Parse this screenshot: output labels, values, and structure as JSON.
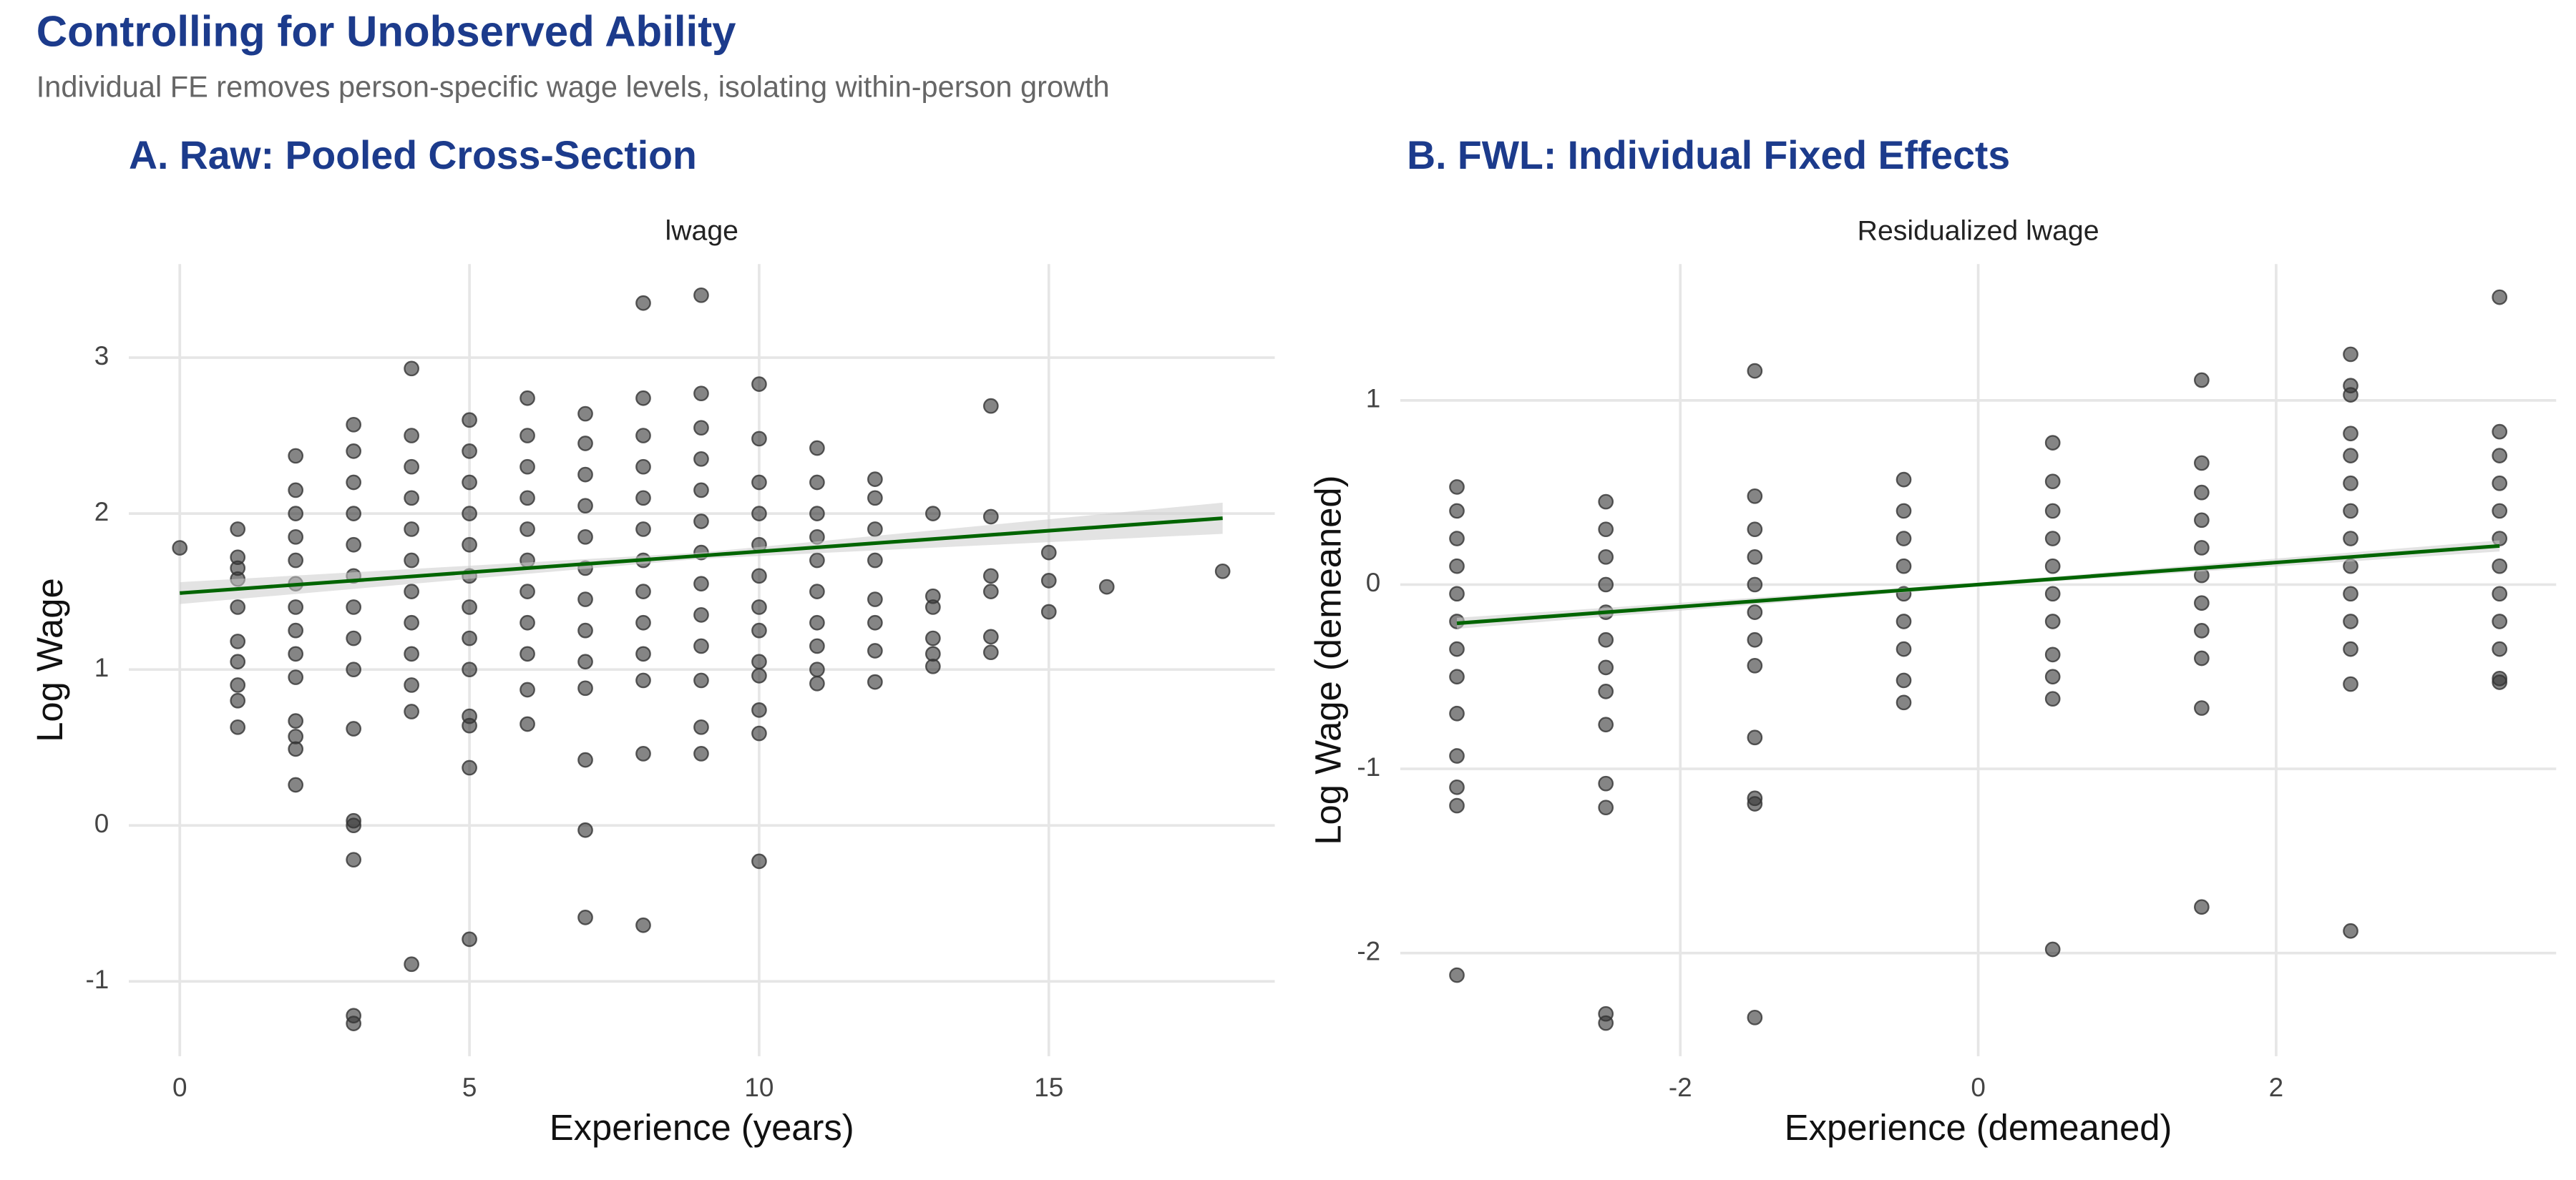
{
  "title": "Controlling for Unobserved Ability",
  "subtitle": "Individual FE removes person-specific wage levels, isolating within-person growth",
  "chart_data": [
    {
      "type": "strip-scatter",
      "title": "A. Raw: Pooled Cross-Section",
      "strip": "lwage",
      "x_label": "Experience (years)",
      "y_label": "Log Wage",
      "xlim": [
        -0.88,
        18.9
      ],
      "ylim": [
        -1.48,
        3.6
      ],
      "xticks": [
        0,
        5,
        10,
        15
      ],
      "yticks": [
        -1,
        0,
        1,
        2,
        3
      ],
      "grid": true,
      "point_color": "#333333",
      "groups": [
        {
          "x": 0,
          "values": [
            1.78
          ]
        },
        {
          "x": 1,
          "values": [
            1.9,
            1.72,
            1.65,
            1.58,
            1.4,
            1.18,
            1.05,
            0.9,
            0.8,
            0.63
          ]
        },
        {
          "x": 2,
          "values": [
            2.37,
            2.15,
            2.0,
            1.85,
            1.7,
            1.55,
            1.4,
            1.25,
            1.1,
            0.95,
            0.67,
            0.57,
            0.49,
            0.26
          ]
        },
        {
          "x": 3,
          "values": [
            2.57,
            2.4,
            2.2,
            2.0,
            1.8,
            1.6,
            1.4,
            1.2,
            1.0,
            0.62,
            0.03,
            0.0,
            -0.22,
            -1.22,
            -1.27
          ]
        },
        {
          "x": 4,
          "values": [
            2.93,
            2.5,
            2.3,
            2.1,
            1.9,
            1.7,
            1.5,
            1.3,
            1.1,
            0.9,
            0.73,
            -0.89
          ]
        },
        {
          "x": 5,
          "values": [
            2.6,
            2.4,
            2.2,
            2.0,
            1.8,
            1.6,
            1.4,
            1.2,
            1.0,
            0.7,
            0.64,
            0.37,
            -0.73
          ]
        },
        {
          "x": 6,
          "values": [
            2.74,
            2.5,
            2.3,
            2.1,
            1.9,
            1.7,
            1.5,
            1.3,
            1.1,
            0.87,
            0.65
          ]
        },
        {
          "x": 7,
          "values": [
            2.64,
            2.45,
            2.25,
            2.05,
            1.85,
            1.65,
            1.45,
            1.25,
            1.05,
            0.88,
            0.42,
            -0.03,
            -0.59
          ]
        },
        {
          "x": 8,
          "values": [
            3.35,
            2.74,
            2.5,
            2.3,
            2.1,
            1.9,
            1.7,
            1.5,
            1.3,
            1.1,
            0.93,
            0.46,
            -0.64
          ]
        },
        {
          "x": 9,
          "values": [
            3.4,
            2.77,
            2.55,
            2.35,
            2.15,
            1.95,
            1.75,
            1.55,
            1.35,
            1.15,
            0.93,
            0.63,
            0.46
          ]
        },
        {
          "x": 10,
          "values": [
            2.83,
            2.48,
            2.2,
            2.0,
            1.8,
            1.6,
            1.4,
            1.25,
            1.05,
            0.96,
            0.74,
            0.59,
            -0.23
          ]
        },
        {
          "x": 11,
          "values": [
            2.42,
            2.2,
            2.0,
            1.85,
            1.7,
            1.5,
            1.3,
            1.15,
            1.0,
            0.91
          ]
        },
        {
          "x": 12,
          "values": [
            2.22,
            2.1,
            1.9,
            1.7,
            1.45,
            1.3,
            1.12,
            0.92
          ]
        },
        {
          "x": 13,
          "values": [
            2.0,
            1.47,
            1.4,
            1.2,
            1.1,
            1.02
          ]
        },
        {
          "x": 14,
          "values": [
            2.69,
            1.98,
            1.6,
            1.5,
            1.21,
            1.11
          ]
        },
        {
          "x": 15,
          "values": [
            1.75,
            1.57,
            1.37
          ]
        },
        {
          "x": 16,
          "values": [
            1.53
          ]
        },
        {
          "x": 18,
          "values": [
            1.63
          ]
        }
      ],
      "fit": {
        "color": "#006400",
        "band_color": "#cccccc",
        "x": [
          0,
          9,
          18
        ],
        "y": [
          1.49,
          1.73,
          1.97
        ],
        "lower": [
          1.42,
          1.71,
          1.87
        ],
        "upper": [
          1.56,
          1.75,
          2.07
        ]
      }
    },
    {
      "type": "strip-scatter",
      "title": "B. FWL: Individual Fixed Effects",
      "strip": "Residualized lwage",
      "x_label": "Experience (demeaned)",
      "y_label": "Log Wage (demeaned)",
      "xlim": [
        -3.88,
        3.88
      ],
      "ylim": [
        -2.56,
        1.74
      ],
      "xticks": [
        -2,
        0,
        2
      ],
      "yticks": [
        -2,
        -1,
        0,
        1
      ],
      "grid": true,
      "point_color": "#333333",
      "groups": [
        {
          "x": -3.5,
          "values": [
            0.53,
            0.4,
            0.25,
            0.1,
            -0.05,
            -0.2,
            -0.35,
            -0.5,
            -0.7,
            -0.93,
            -1.1,
            -1.2,
            -2.12
          ]
        },
        {
          "x": -2.5,
          "values": [
            0.45,
            0.3,
            0.15,
            0,
            -0.15,
            -0.3,
            -0.45,
            -0.58,
            -0.76,
            -1.08,
            -1.21,
            -2.33,
            -2.38
          ]
        },
        {
          "x": -1.5,
          "values": [
            1.16,
            0.48,
            0.3,
            0.15,
            0,
            -0.15,
            -0.3,
            -0.44,
            -0.83,
            -1.16,
            -1.19,
            -2.35
          ]
        },
        {
          "x": -0.5,
          "values": [
            0.57,
            0.4,
            0.25,
            0.1,
            -0.05,
            -0.2,
            -0.35,
            -0.52,
            -0.64
          ]
        },
        {
          "x": 0.5,
          "values": [
            0.77,
            0.56,
            0.4,
            0.25,
            0.1,
            -0.05,
            -0.2,
            -0.38,
            -0.5,
            -0.62,
            -1.98
          ]
        },
        {
          "x": 1.5,
          "values": [
            1.11,
            0.66,
            0.5,
            0.35,
            0.2,
            0.05,
            -0.1,
            -0.25,
            -0.4,
            -0.67,
            -1.75
          ]
        },
        {
          "x": 2.5,
          "values": [
            1.25,
            1.08,
            1.03,
            0.82,
            0.7,
            0.55,
            0.4,
            0.25,
            0.1,
            -0.05,
            -0.2,
            -0.35,
            -0.54,
            -1.88
          ]
        },
        {
          "x": 3.5,
          "values": [
            1.56,
            0.83,
            0.7,
            0.55,
            0.4,
            0.25,
            0.1,
            -0.05,
            -0.2,
            -0.35,
            -0.51,
            -0.53
          ]
        }
      ],
      "fit": {
        "color": "#006400",
        "band_color": "#cccccc",
        "x": [
          -3.5,
          0,
          3.5
        ],
        "y": [
          -0.21,
          0,
          0.21
        ],
        "lower": [
          -0.24,
          -0.01,
          0.18
        ],
        "upper": [
          -0.18,
          0.01,
          0.24
        ]
      }
    }
  ]
}
